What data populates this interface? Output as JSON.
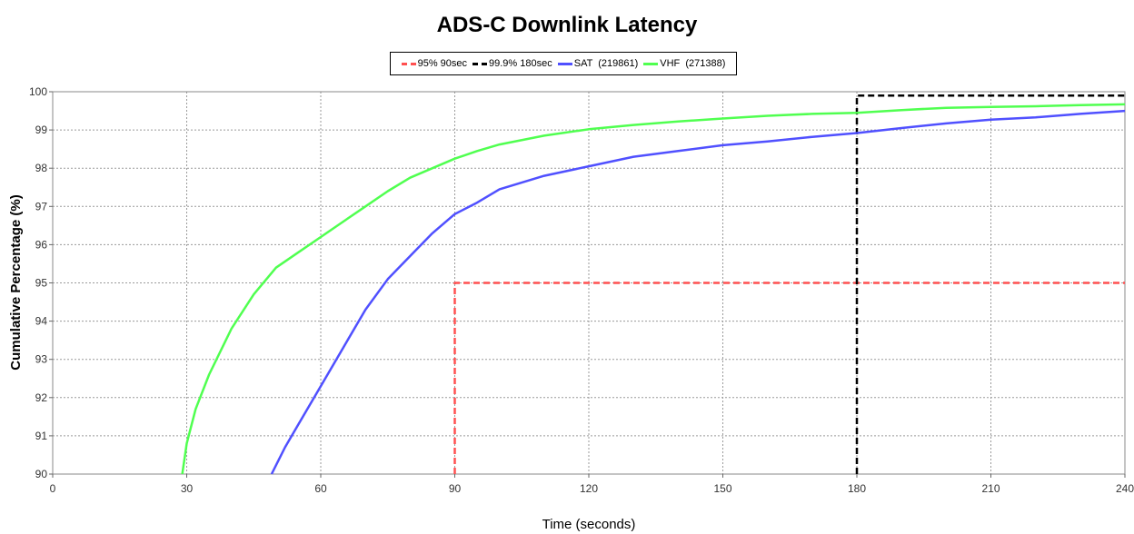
{
  "chart_data": {
    "type": "line",
    "title": "ADS-C Downlink Latency",
    "xlabel": "Time (seconds)",
    "ylabel": "Cumulative Percentage (%)",
    "xlim": [
      0,
      240
    ],
    "ylim": [
      90,
      100
    ],
    "xticks": [
      0,
      30,
      60,
      90,
      120,
      150,
      180,
      210,
      240
    ],
    "yticks": [
      90,
      91,
      92,
      93,
      94,
      95,
      96,
      97,
      98,
      99,
      100
    ],
    "grid": true,
    "legend_position": "top-center",
    "series": [
      {
        "name": "95% 90sec",
        "color": "#ff5050",
        "style": "dashed",
        "points": [
          [
            90,
            90
          ],
          [
            90,
            95
          ],
          [
            240,
            95
          ]
        ]
      },
      {
        "name": "99.9% 180sec",
        "color": "#000000",
        "style": "dashed",
        "points": [
          [
            180,
            90
          ],
          [
            180,
            99.9
          ],
          [
            240,
            99.9
          ]
        ]
      },
      {
        "name": "SAT  (219861)",
        "color": "#5050ff",
        "style": "solid",
        "points": [
          [
            49,
            90
          ],
          [
            52,
            90.7
          ],
          [
            55,
            91.3
          ],
          [
            60,
            92.3
          ],
          [
            65,
            93.3
          ],
          [
            70,
            94.3
          ],
          [
            75,
            95.1
          ],
          [
            80,
            95.7
          ],
          [
            85,
            96.3
          ],
          [
            90,
            96.8
          ],
          [
            95,
            97.1
          ],
          [
            100,
            97.45
          ],
          [
            110,
            97.8
          ],
          [
            120,
            98.05
          ],
          [
            130,
            98.3
          ],
          [
            140,
            98.45
          ],
          [
            150,
            98.6
          ],
          [
            160,
            98.7
          ],
          [
            170,
            98.82
          ],
          [
            180,
            98.92
          ],
          [
            190,
            99.05
          ],
          [
            200,
            99.17
          ],
          [
            210,
            99.27
          ],
          [
            220,
            99.33
          ],
          [
            230,
            99.42
          ],
          [
            240,
            99.5
          ]
        ]
      },
      {
        "name": "VHF  (271388)",
        "color": "#50ff50",
        "style": "solid",
        "points": [
          [
            29,
            90
          ],
          [
            30,
            90.8
          ],
          [
            32,
            91.7
          ],
          [
            35,
            92.6
          ],
          [
            40,
            93.8
          ],
          [
            45,
            94.7
          ],
          [
            50,
            95.4
          ],
          [
            55,
            95.8
          ],
          [
            60,
            96.2
          ],
          [
            65,
            96.6
          ],
          [
            70,
            97.0
          ],
          [
            75,
            97.4
          ],
          [
            80,
            97.75
          ],
          [
            85,
            98.0
          ],
          [
            90,
            98.25
          ],
          [
            95,
            98.45
          ],
          [
            100,
            98.62
          ],
          [
            110,
            98.85
          ],
          [
            120,
            99.02
          ],
          [
            130,
            99.13
          ],
          [
            140,
            99.22
          ],
          [
            150,
            99.3
          ],
          [
            160,
            99.37
          ],
          [
            170,
            99.42
          ],
          [
            180,
            99.45
          ],
          [
            190,
            99.52
          ],
          [
            200,
            99.58
          ],
          [
            210,
            99.6
          ],
          [
            220,
            99.62
          ],
          [
            230,
            99.65
          ],
          [
            240,
            99.67
          ]
        ]
      }
    ]
  }
}
